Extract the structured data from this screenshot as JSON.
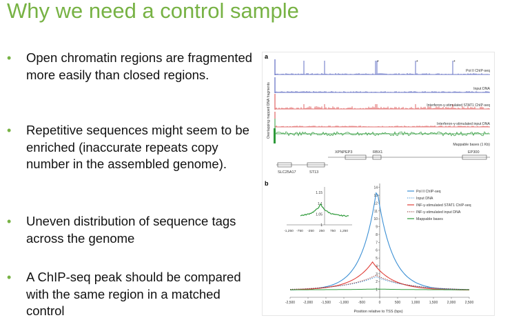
{
  "slide": {
    "title": "Why we need a control sample",
    "bullets": [
      "Open chromatin regions are fragmented more easily than closed regions.",
      "Repetitive sequences might seem to be enriched (inaccurate repeats copy number in the assembled genome).",
      "Uneven distribution of sequence tags across the genome",
      "A ChIP-seq peak should be compared with the same region in a matched control"
    ],
    "bullet_symbol": "•"
  },
  "figure": {
    "panel_a": {
      "label": "a",
      "y_axis_label": "Overlapping mapped DNA fragments",
      "tracks": [
        {
          "name": "Pol II ChIP-seq",
          "color": "#3b4bb5"
        },
        {
          "name": "Input DNA",
          "color": "#3b4bb5"
        },
        {
          "name": "Interferon-γ-stimulated STAT1 ChIP-seq",
          "color": "#d94040"
        },
        {
          "name": "Interferon-γ-stimulated input DNA",
          "color": "#d94040"
        },
        {
          "name": "Mappable bases (1 Kb)",
          "color": "#2e9a3a"
        }
      ],
      "peak_marker": "*",
      "genes_top": [
        "XPNPEP3",
        "RBX1",
        "EP300"
      ],
      "genes_bottom": [
        "SLC25A17",
        "ST13"
      ]
    },
    "panel_b": {
      "label": "b",
      "xlabel": "Position relative to TSS (bps)",
      "legend": [
        {
          "name": "Pol II ChIP-seq",
          "color": "#3b8fd4",
          "style": "solid"
        },
        {
          "name": "Input DNA",
          "color": "#3b8fd4",
          "style": "dotted"
        },
        {
          "name": "INF-γ-stimulated STAT1 ChIP-seq",
          "color": "#e0403a",
          "style": "solid"
        },
        {
          "name": "INF-γ-stimulated input DNA",
          "color": "#8a2a2a",
          "style": "dotted"
        },
        {
          "name": "Mappable bases",
          "color": "#2e9a3a",
          "style": "solid"
        }
      ],
      "x_ticks": [
        "-2,500",
        "-2,000",
        "-1,500",
        "-1,000",
        "-500",
        "0",
        "500",
        "1,000",
        "1,500",
        "2,000",
        "2,500"
      ],
      "y_ticks": [
        "14",
        "13",
        "12",
        "11",
        "10",
        "9",
        "8",
        "7",
        "6",
        "5",
        "4",
        "3",
        "2",
        "1"
      ],
      "inset": {
        "y_ticks": [
          "1.15",
          "1.1",
          "1.05",
          "1"
        ],
        "x_ticks": [
          "-1,250",
          "-750",
          "-250",
          "250",
          "750",
          "1,250"
        ]
      }
    }
  }
}
